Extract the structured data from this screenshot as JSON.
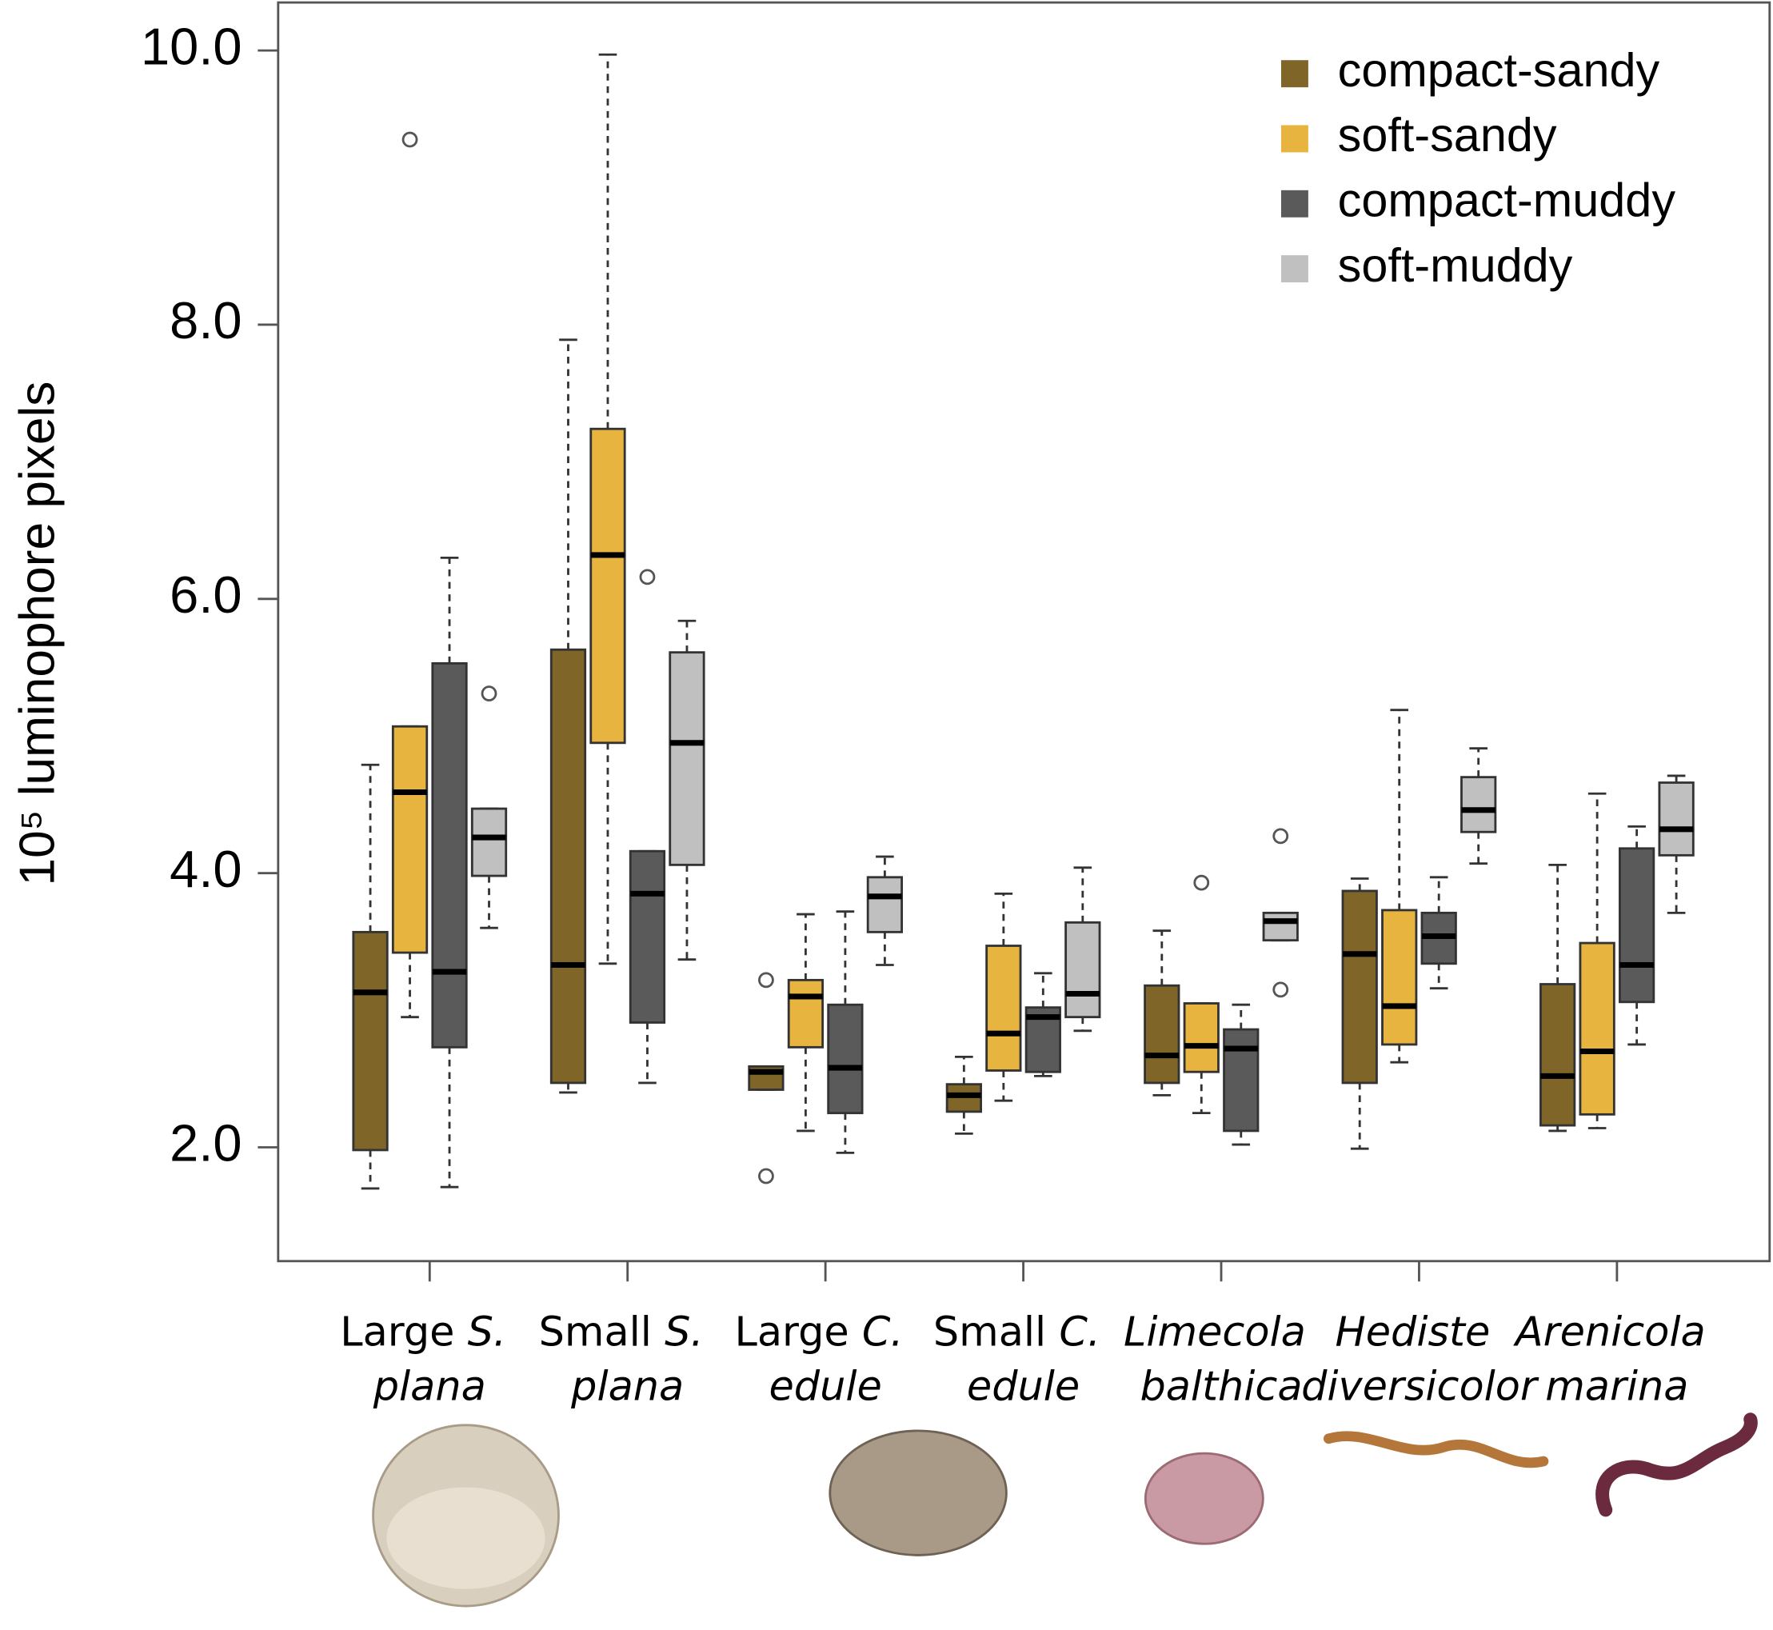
{
  "chart_data": {
    "type": "box",
    "y_label": "10⁵ luminophore pixels",
    "categories": [
      "Large S. plana",
      "Small S. plana",
      "Large C. edule",
      "Small C. edule",
      "Limecola balthica",
      "Hediste diversicolor",
      "Arenicola marina"
    ],
    "ylim": [
      1.17,
      10.35
    ],
    "yticks": [
      {
        "value": 2,
        "label": "2.0"
      },
      {
        "value": 4,
        "label": "4.0"
      },
      {
        "value": 6,
        "label": "6.0"
      },
      {
        "value": 8,
        "label": "8.0"
      },
      {
        "value": 10,
        "label": "10.0"
      }
    ],
    "legend_position": "upper right",
    "series": [
      {
        "name": "compact-sandy",
        "color": "#7f6527",
        "whislo": [
          1.7,
          2.4,
          2.42,
          2.1,
          2.38,
          1.99,
          2.12
        ],
        "q1": [
          1.98,
          2.47,
          2.42,
          2.26,
          2.47,
          2.47,
          2.16
        ],
        "med": [
          3.13,
          3.33,
          2.55,
          2.38,
          2.67,
          3.41,
          2.52
        ],
        "q3": [
          3.57,
          5.63,
          2.59,
          2.46,
          3.18,
          3.87,
          3.19
        ],
        "whishi": [
          4.79,
          7.89,
          2.59,
          2.66,
          3.58,
          3.96,
          4.06
        ],
        "outliers": [
          [],
          [],
          [
            1.79,
            3.22
          ],
          [],
          [],
          [],
          []
        ]
      },
      {
        "name": "soft-sandy",
        "color": "#e8b440",
        "whislo": [
          2.95,
          3.34,
          2.12,
          2.34,
          2.25,
          2.62,
          2.14
        ],
        "q1": [
          3.42,
          4.95,
          2.73,
          2.56,
          2.55,
          2.75,
          2.24
        ],
        "med": [
          4.59,
          6.32,
          3.1,
          2.83,
          2.74,
          3.03,
          2.7
        ],
        "q3": [
          5.07,
          7.24,
          3.22,
          3.47,
          3.05,
          3.73,
          3.49
        ],
        "whishi": [
          5.07,
          9.97,
          3.7,
          3.85,
          3.05,
          5.19,
          4.58
        ],
        "outliers": [
          [
            9.35
          ],
          [],
          [],
          [],
          [
            3.93
          ],
          [],
          []
        ]
      },
      {
        "name": "compact-muddy",
        "color": "#5a5a5a",
        "whislo": [
          1.71,
          2.47,
          1.96,
          2.52,
          2.02,
          3.16,
          2.75
        ],
        "q1": [
          2.73,
          2.91,
          2.25,
          2.55,
          2.12,
          3.34,
          3.06
        ],
        "med": [
          3.28,
          3.85,
          2.58,
          2.95,
          2.72,
          3.54,
          3.33
        ],
        "q3": [
          5.53,
          4.16,
          3.04,
          3.02,
          2.86,
          3.71,
          4.18
        ],
        "whishi": [
          6.3,
          4.16,
          3.72,
          3.27,
          3.04,
          3.97,
          4.34
        ],
        "outliers": [
          [],
          [
            6.16
          ],
          [],
          [],
          [],
          [],
          []
        ]
      },
      {
        "name": "soft-muddy",
        "color": "#c0c0c0",
        "whislo": [
          3.6,
          3.37,
          3.33,
          2.85,
          3.51,
          4.07,
          3.71
        ],
        "q1": [
          3.98,
          4.06,
          3.57,
          2.95,
          3.51,
          4.3,
          4.13
        ],
        "med": [
          4.26,
          4.95,
          3.83,
          3.12,
          3.65,
          4.46,
          4.32
        ],
        "q3": [
          4.47,
          5.61,
          3.97,
          3.64,
          3.71,
          4.7,
          4.66
        ],
        "whishi": [
          4.47,
          5.84,
          4.12,
          4.04,
          3.71,
          4.91,
          4.71
        ],
        "outliers": [
          [
            5.31
          ],
          [],
          [],
          [],
          [
            4.27,
            3.15
          ],
          [],
          []
        ]
      }
    ]
  }
}
